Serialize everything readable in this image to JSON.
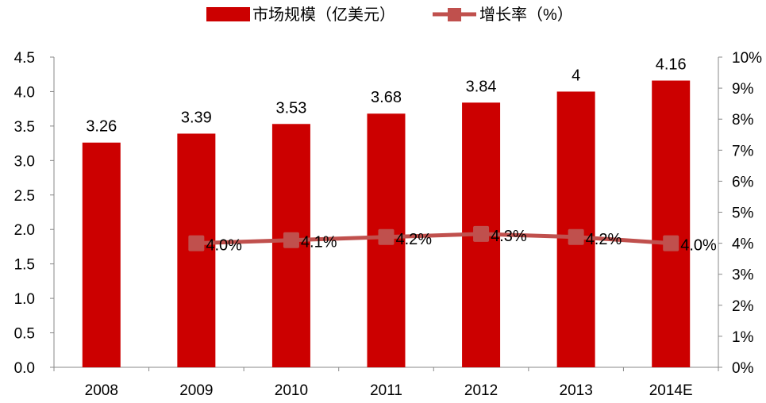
{
  "chart_data": {
    "type": "bar",
    "categories": [
      "2008",
      "2009",
      "2010",
      "2011",
      "2012",
      "2013",
      "2014E"
    ],
    "series": [
      {
        "name": "市场规模（亿美元）",
        "type": "bar",
        "axis": "left",
        "values": [
          3.26,
          3.39,
          3.53,
          3.68,
          3.84,
          4,
          4.16
        ],
        "labels": [
          "3.26",
          "3.39",
          "3.53",
          "3.68",
          "3.84",
          "4",
          "4.16"
        ],
        "color": "#CC0000"
      },
      {
        "name": "增长率（%）",
        "type": "line",
        "axis": "right",
        "values": [
          null,
          4.0,
          4.1,
          4.2,
          4.3,
          4.2,
          4.0
        ],
        "labels": [
          "",
          "4.0%",
          "4.1%",
          "4.2%",
          "4.3%",
          "4.2%",
          "4.0%"
        ],
        "color": "#C0504D"
      }
    ],
    "left_axis": {
      "ylim": [
        0,
        4.5
      ],
      "ticks": [
        "0.0",
        "0.5",
        "1.0",
        "1.5",
        "2.0",
        "2.5",
        "3.0",
        "3.5",
        "4.0",
        "4.5"
      ]
    },
    "right_axis": {
      "ylim": [
        0,
        10
      ],
      "ticks": [
        "0%",
        "1%",
        "2%",
        "3%",
        "4%",
        "5%",
        "6%",
        "7%",
        "8%",
        "9%",
        "10%"
      ]
    },
    "legend": "top-center",
    "grid": false
  }
}
